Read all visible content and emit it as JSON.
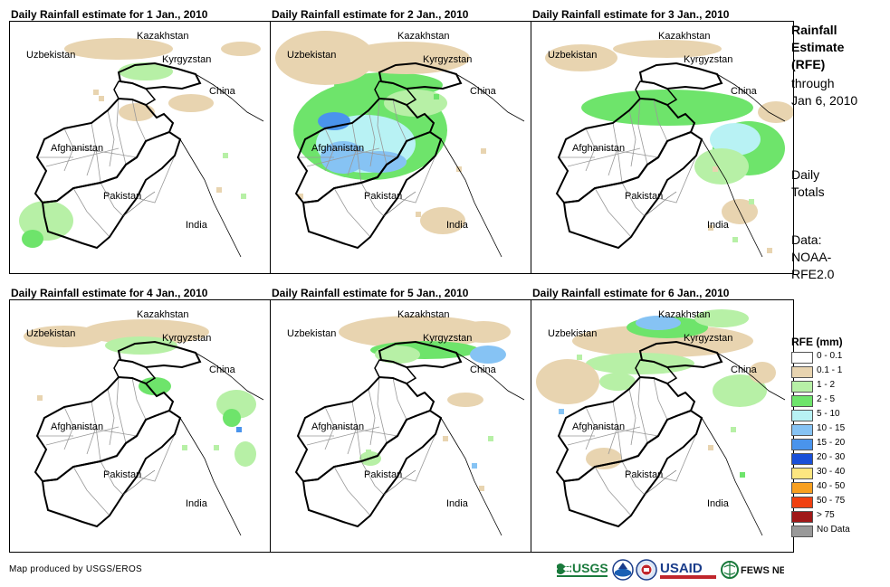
{
  "panels": [
    {
      "title": "Daily Rainfall estimate for 1 Jan., 2010"
    },
    {
      "title": "Daily Rainfall estimate for 2 Jan., 2010"
    },
    {
      "title": "Daily Rainfall estimate for 3 Jan., 2010"
    },
    {
      "title": "Daily Rainfall estimate for 4 Jan., 2010"
    },
    {
      "title": "Daily Rainfall estimate for 5 Jan., 2010"
    },
    {
      "title": "Daily Rainfall estimate for 6 Jan., 2010"
    }
  ],
  "map_labels": {
    "kazakhstan": "Kazakhstan",
    "uzbekistan": "Uzbekistan",
    "kyrgyzstan": "Kyrgyzstan",
    "china": "China",
    "afghanistan": "Afghanistan",
    "pakistan": "Pakistan",
    "india": "India"
  },
  "side": {
    "title_lines": [
      "Rainfall",
      "Estimate",
      "(RFE)"
    ],
    "through_lines": [
      "through",
      "Jan 6, 2010"
    ],
    "daily_lines": [
      "Daily",
      "Totals"
    ],
    "data_lines": [
      "Data:",
      "NOAA-",
      "RFE2.0"
    ]
  },
  "legend": {
    "title": "RFE (mm)",
    "items": [
      {
        "label": "0 - 0.1",
        "color": "#ffffff"
      },
      {
        "label": "0.1 - 1",
        "color": "#e8d4b0"
      },
      {
        "label": "1 - 2",
        "color": "#b7f0a6"
      },
      {
        "label": "2 - 5",
        "color": "#6ee46b"
      },
      {
        "label": "5 - 10",
        "color": "#b8f2f4"
      },
      {
        "label": "10 - 15",
        "color": "#86c3f4"
      },
      {
        "label": "15 - 20",
        "color": "#4a94ec"
      },
      {
        "label": "20 - 30",
        "color": "#1a50d8"
      },
      {
        "label": "30 - 40",
        "color": "#fde680"
      },
      {
        "label": "40 - 50",
        "color": "#f8a020"
      },
      {
        "label": "50 - 75",
        "color": "#f04010"
      },
      {
        "label": "> 75",
        "color": "#a01818"
      },
      {
        "label": "No Data",
        "color": "#999999"
      }
    ]
  },
  "footer": {
    "credit": "Map produced by USGS/EROS",
    "logos": {
      "usgs": "USGS",
      "usaid": "USAID",
      "fewsnet": "FEWS NET"
    }
  },
  "colors": {
    "tan": "#e8d4b0",
    "light_green": "#b7f0a6",
    "green": "#6ee46b",
    "cyan": "#b8f2f4",
    "light_blue": "#86c3f4",
    "blue": "#4a94ec",
    "border_national": "#000000",
    "border_province": "#999999",
    "usgs_green": "#1a7a3c",
    "usaid_blue": "#1a3c8a",
    "usaid_red": "#c0262c"
  }
}
